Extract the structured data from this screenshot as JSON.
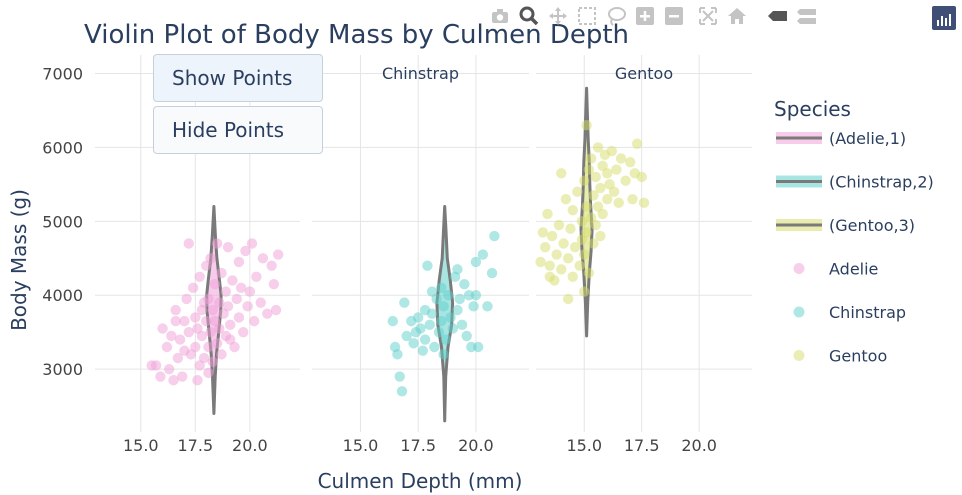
{
  "chart_data": {
    "type": "violin",
    "title": "Violin Plot of Body Mass by Culmen Depth",
    "xlabel": "Culmen Depth (mm)",
    "ylabel": "Body Mass (g)",
    "ylim": [
      2150,
      7250
    ],
    "yticks": [
      3000,
      4000,
      5000,
      6000,
      7000
    ],
    "ytick_labels": [
      "3000",
      "4000",
      "5000",
      "6000",
      "7000"
    ],
    "xticks": [
      15.0,
      17.5,
      20.0
    ],
    "xtick_labels": [
      "15.0",
      "17.5",
      "20.0"
    ],
    "grid": true,
    "legend_title": "Species",
    "legend_position": "right",
    "facets": [
      {
        "label": "",
        "xlim": [
          12.9,
          22.3
        ],
        "species": "Adelie",
        "color": "#f0a0d8",
        "violin": {
          "x": 18.35,
          "profile": [
            [
              2400,
              0.0
            ],
            [
              2900,
              0.06
            ],
            [
              3200,
              0.12
            ],
            [
              3500,
              0.22
            ],
            [
              3800,
              0.32
            ],
            [
              4000,
              0.33
            ],
            [
              4200,
              0.26
            ],
            [
              4500,
              0.14
            ],
            [
              4800,
              0.07
            ],
            [
              5200,
              0.0
            ]
          ],
          "median": 3700
        },
        "points": [
          [
            15.5,
            3050
          ],
          [
            15.7,
            3050
          ],
          [
            15.9,
            2900
          ],
          [
            16.0,
            3550
          ],
          [
            16.2,
            3300
          ],
          [
            16.3,
            3000
          ],
          [
            16.5,
            2850
          ],
          [
            16.6,
            3800
          ],
          [
            16.7,
            3150
          ],
          [
            16.8,
            3400
          ],
          [
            16.9,
            2900
          ],
          [
            17.0,
            3650
          ],
          [
            17.0,
            3250
          ],
          [
            17.1,
            3950
          ],
          [
            17.2,
            3500
          ],
          [
            17.3,
            3200
          ],
          [
            17.4,
            4100
          ],
          [
            17.5,
            3700
          ],
          [
            17.5,
            3300
          ],
          [
            17.6,
            3550
          ],
          [
            17.7,
            4250
          ],
          [
            17.7,
            3050
          ],
          [
            17.8,
            3800
          ],
          [
            17.8,
            3450
          ],
          [
            17.9,
            3900
          ],
          [
            17.9,
            3150
          ],
          [
            18.0,
            4400
          ],
          [
            18.0,
            3650
          ],
          [
            18.1,
            3300
          ],
          [
            18.1,
            3950
          ],
          [
            18.2,
            4500
          ],
          [
            18.2,
            3500
          ],
          [
            18.3,
            3800
          ],
          [
            18.3,
            3100
          ],
          [
            18.4,
            4150
          ],
          [
            18.4,
            3650
          ],
          [
            18.5,
            3350
          ],
          [
            18.5,
            4700
          ],
          [
            18.6,
            3900
          ],
          [
            18.6,
            3550
          ],
          [
            18.7,
            4300
          ],
          [
            18.7,
            3200
          ],
          [
            18.8,
            3750
          ],
          [
            18.9,
            4050
          ],
          [
            18.9,
            3450
          ],
          [
            19.0,
            4650
          ],
          [
            19.0,
            3850
          ],
          [
            19.1,
            3600
          ],
          [
            19.2,
            4200
          ],
          [
            19.3,
            3300
          ],
          [
            19.4,
            3950
          ],
          [
            19.5,
            4450
          ],
          [
            19.5,
            3700
          ],
          [
            19.6,
            4100
          ],
          [
            19.7,
            3500
          ],
          [
            19.8,
            4600
          ],
          [
            19.9,
            3850
          ],
          [
            20.0,
            4050
          ],
          [
            20.1,
            4700
          ],
          [
            20.2,
            3650
          ],
          [
            20.3,
            4250
          ],
          [
            20.5,
            3900
          ],
          [
            20.6,
            4500
          ],
          [
            20.8,
            3750
          ],
          [
            21.0,
            4400
          ],
          [
            21.1,
            4150
          ],
          [
            21.2,
            3800
          ],
          [
            21.3,
            4550
          ],
          [
            17.2,
            4700
          ],
          [
            17.6,
            2850
          ],
          [
            18.1,
            2950
          ],
          [
            16.6,
            3650
          ],
          [
            16.4,
            3450
          ],
          [
            19.1,
            3400
          ]
        ]
      },
      {
        "label": "Chinstrap",
        "xlim": [
          12.9,
          22.3
        ],
        "species": "Chinstrap",
        "color": "#5fd0cc",
        "violin": {
          "x": 18.65,
          "profile": [
            [
              2300,
              0.0
            ],
            [
              2900,
              0.04
            ],
            [
              3300,
              0.14
            ],
            [
              3600,
              0.3
            ],
            [
              3900,
              0.34
            ],
            [
              4200,
              0.24
            ],
            [
              4500,
              0.11
            ],
            [
              4900,
              0.05
            ],
            [
              5200,
              0.0
            ]
          ],
          "median": 3700
        },
        "points": [
          [
            16.4,
            3650
          ],
          [
            16.5,
            3300
          ],
          [
            16.6,
            3200
          ],
          [
            16.7,
            2900
          ],
          [
            16.8,
            2700
          ],
          [
            16.9,
            3900
          ],
          [
            17.0,
            3450
          ],
          [
            17.2,
            3650
          ],
          [
            17.3,
            3350
          ],
          [
            17.5,
            3700
          ],
          [
            17.6,
            3550
          ],
          [
            17.7,
            3250
          ],
          [
            17.8,
            3800
          ],
          [
            17.8,
            3400
          ],
          [
            17.9,
            4400
          ],
          [
            18.0,
            3600
          ],
          [
            18.1,
            3750
          ],
          [
            18.2,
            3300
          ],
          [
            18.3,
            3950
          ],
          [
            18.4,
            3500
          ],
          [
            18.5,
            4100
          ],
          [
            18.5,
            3650
          ],
          [
            18.6,
            3850
          ],
          [
            18.7,
            3400
          ],
          [
            18.8,
            4000
          ],
          [
            18.9,
            3700
          ],
          [
            19.0,
            3550
          ],
          [
            19.1,
            4250
          ],
          [
            19.2,
            3800
          ],
          [
            19.3,
            3950
          ],
          [
            19.4,
            3600
          ],
          [
            19.5,
            4150
          ],
          [
            19.6,
            3450
          ],
          [
            19.7,
            4000
          ],
          [
            19.8,
            3300
          ],
          [
            19.9,
            3850
          ],
          [
            20.0,
            4450
          ],
          [
            20.0,
            4000
          ],
          [
            20.1,
            3300
          ],
          [
            20.3,
            4550
          ],
          [
            20.5,
            3850
          ],
          [
            20.7,
            4300
          ],
          [
            20.8,
            4800
          ],
          [
            18.1,
            4050
          ],
          [
            17.4,
            3500
          ],
          [
            18.6,
            3200
          ],
          [
            19.2,
            4350
          ]
        ]
      },
      {
        "label": "Gentoo",
        "xlim": [
          12.9,
          22.3
        ],
        "species": "Gentoo",
        "color": "#d6dd6a",
        "violin": {
          "x": 15.1,
          "profile": [
            [
              3450,
              0.0
            ],
            [
              3900,
              0.05
            ],
            [
              4300,
              0.12
            ],
            [
              4600,
              0.2
            ],
            [
              4900,
              0.24
            ],
            [
              5200,
              0.18
            ],
            [
              5500,
              0.14
            ],
            [
              5800,
              0.12
            ],
            [
              6100,
              0.07
            ],
            [
              6400,
              0.04
            ],
            [
              6800,
              0.0
            ]
          ],
          "median": 5000
        },
        "points": [
          [
            13.1,
            4450
          ],
          [
            13.2,
            4850
          ],
          [
            13.3,
            4650
          ],
          [
            13.4,
            5100
          ],
          [
            13.5,
            4400
          ],
          [
            13.6,
            4800
          ],
          [
            13.7,
            4200
          ],
          [
            13.8,
            4550
          ],
          [
            13.9,
            4950
          ],
          [
            14.0,
            4350
          ],
          [
            14.1,
            4700
          ],
          [
            14.2,
            5300
          ],
          [
            14.3,
            4500
          ],
          [
            14.4,
            4900
          ],
          [
            14.5,
            4250
          ],
          [
            14.5,
            5150
          ],
          [
            14.6,
            4650
          ],
          [
            14.7,
            5400
          ],
          [
            14.8,
            4400
          ],
          [
            14.9,
            5000
          ],
          [
            14.9,
            4750
          ],
          [
            15.0,
            5550
          ],
          [
            15.0,
            4550
          ],
          [
            15.1,
            5200
          ],
          [
            15.1,
            4850
          ],
          [
            15.2,
            5700
          ],
          [
            15.2,
            4300
          ],
          [
            15.3,
            5050
          ],
          [
            15.3,
            5850
          ],
          [
            15.4,
            4700
          ],
          [
            15.4,
            5350
          ],
          [
            15.5,
            4950
          ],
          [
            15.5,
            5600
          ],
          [
            15.6,
            5200
          ],
          [
            15.6,
            6000
          ],
          [
            15.7,
            5450
          ],
          [
            15.7,
            4800
          ],
          [
            15.8,
            5750
          ],
          [
            15.8,
            5100
          ],
          [
            15.9,
            5900
          ],
          [
            16.0,
            5300
          ],
          [
            16.0,
            5650
          ],
          [
            16.1,
            5500
          ],
          [
            16.2,
            5950
          ],
          [
            16.3,
            5400
          ],
          [
            16.4,
            5700
          ],
          [
            16.5,
            5250
          ],
          [
            16.6,
            5850
          ],
          [
            16.8,
            5550
          ],
          [
            17.0,
            5800
          ],
          [
            17.1,
            5300
          ],
          [
            17.2,
            5650
          ],
          [
            17.3,
            6050
          ],
          [
            17.5,
            5600
          ],
          [
            17.6,
            5250
          ],
          [
            15.1,
            6300
          ],
          [
            14.3,
            3950
          ],
          [
            15.0,
            4050
          ],
          [
            13.5,
            4250
          ],
          [
            14.0,
            5650
          ]
        ]
      }
    ],
    "legend": [
      {
        "label": "(Adelie,1)",
        "kind": "line",
        "color": "#f0a0d8"
      },
      {
        "label": "(Chinstrap,2)",
        "kind": "line",
        "color": "#5fd0cc"
      },
      {
        "label": "(Gentoo,3)",
        "kind": "line",
        "color": "#d6dd6a"
      },
      {
        "label": "Adelie",
        "kind": "point",
        "color": "#f0a0d8"
      },
      {
        "label": "Chinstrap",
        "kind": "point",
        "color": "#5fd0cc"
      },
      {
        "label": "Gentoo",
        "kind": "point",
        "color": "#d6dd6a"
      }
    ]
  },
  "ui": {
    "show_points": "Show Points",
    "hide_points": "Hide Points"
  },
  "modebar": {
    "icons": [
      "camera-icon",
      "zoom-icon",
      "pan-icon",
      "box-select-icon",
      "lasso-icon",
      "zoom-in-icon",
      "zoom-out-icon",
      "autoscale-icon",
      "reset-axes-icon",
      "hover-closest-icon",
      "hover-compare-icon",
      "plotly-logo-icon"
    ]
  },
  "colors": {
    "grid": "#e5e5e5",
    "axis_text": "#444444",
    "title": "#2a3f5f",
    "violin_line": "#7a7a7a",
    "modebar_icon": "#c4c4c4"
  }
}
